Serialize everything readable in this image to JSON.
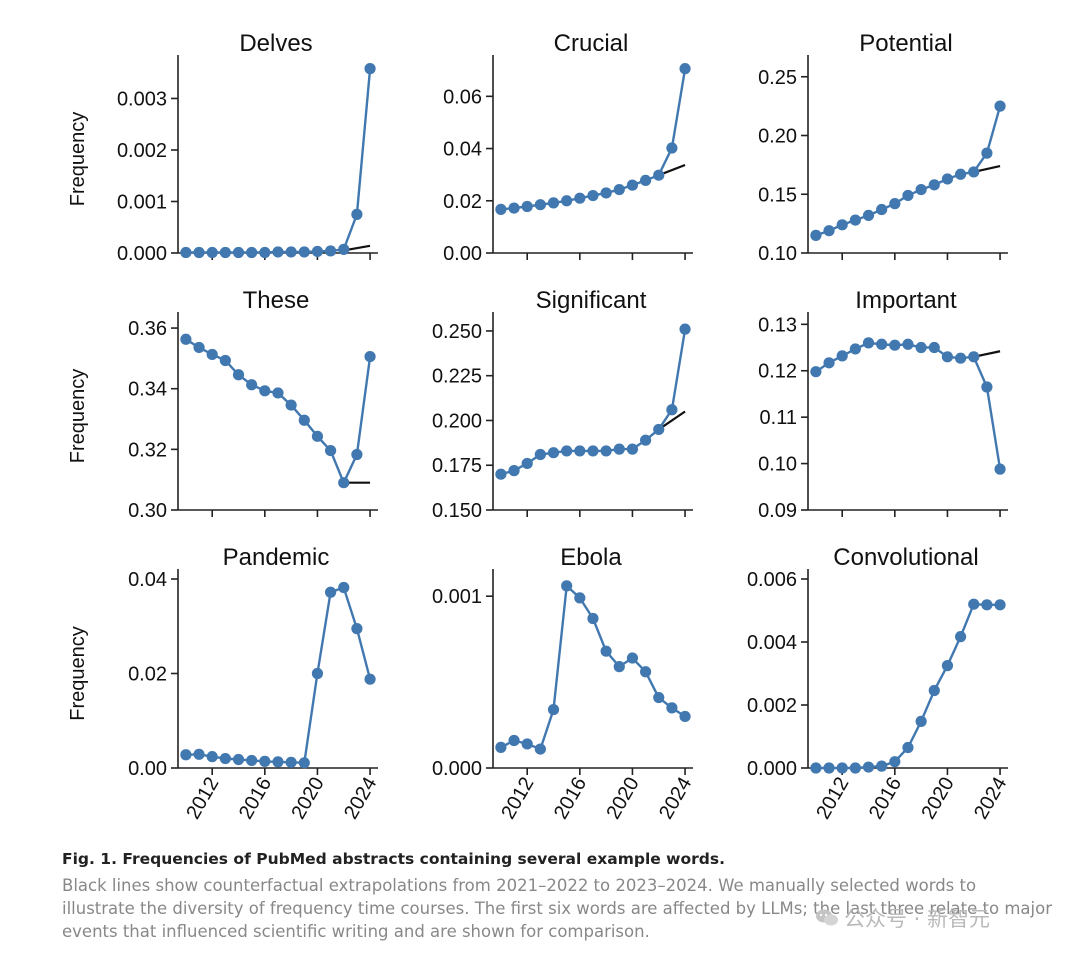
{
  "colors": {
    "series": "#4278b0",
    "extrapolation": "#111111",
    "axis": "#222222"
  },
  "ylabel": "Frequency",
  "x_ticks": [
    "2012",
    "2016",
    "2020",
    "2024"
  ],
  "chart_data": [
    {
      "type": "line",
      "title": "Delves",
      "ylim": [
        0,
        0.00365
      ],
      "yticks": [
        0,
        0.001,
        0.002,
        0.003
      ],
      "ytick_labels": [
        "0.000",
        "0.001",
        "0.002",
        "0.003"
      ],
      "x": [
        2010,
        2011,
        2012,
        2013,
        2014,
        2015,
        2016,
        2017,
        2018,
        2019,
        2020,
        2021,
        2022,
        2023,
        2024
      ],
      "values": [
        1e-05,
        1e-05,
        1e-05,
        1e-05,
        1e-05,
        1e-05,
        1e-05,
        2e-05,
        2e-05,
        2e-05,
        3e-05,
        4e-05,
        7e-05,
        0.00075,
        0.00358
      ],
      "extrapolation": {
        "x": [
          2022,
          2024
        ],
        "y": [
          5e-05,
          0.00014
        ]
      }
    },
    {
      "type": "line",
      "title": "Crucial",
      "ylim": [
        0,
        0.072
      ],
      "yticks": [
        0,
        0.02,
        0.04,
        0.06
      ],
      "ytick_labels": [
        "0.00",
        "0.02",
        "0.04",
        "0.06"
      ],
      "x": [
        2010,
        2011,
        2012,
        2013,
        2014,
        2015,
        2016,
        2017,
        2018,
        2019,
        2020,
        2021,
        2022,
        2023,
        2024
      ],
      "values": [
        0.0167,
        0.0172,
        0.0178,
        0.0185,
        0.0192,
        0.02,
        0.021,
        0.022,
        0.023,
        0.0243,
        0.026,
        0.0278,
        0.0298,
        0.0402,
        0.0706
      ],
      "extrapolation": {
        "x": [
          2022,
          2024
        ],
        "y": [
          0.0298,
          0.0337
        ]
      }
    },
    {
      "type": "line",
      "title": "Potential",
      "ylim": [
        0.1,
        0.26
      ],
      "yticks": [
        0.1,
        0.15,
        0.2,
        0.25
      ],
      "ytick_labels": [
        "0.10",
        "0.15",
        "0.20",
        "0.25"
      ],
      "x": [
        2010,
        2011,
        2012,
        2013,
        2014,
        2015,
        2016,
        2017,
        2018,
        2019,
        2020,
        2021,
        2022,
        2023,
        2024
      ],
      "values": [
        0.115,
        0.119,
        0.124,
        0.128,
        0.132,
        0.137,
        0.142,
        0.149,
        0.154,
        0.158,
        0.163,
        0.167,
        0.169,
        0.185,
        0.225
      ],
      "extrapolation": {
        "x": [
          2022,
          2024
        ],
        "y": [
          0.169,
          0.174
        ]
      }
    },
    {
      "type": "line",
      "title": "These",
      "ylim": [
        0.3,
        0.362
      ],
      "yticks": [
        0.3,
        0.32,
        0.34,
        0.36
      ],
      "ytick_labels": [
        "0.30",
        "0.32",
        "0.34",
        "0.36"
      ],
      "x": [
        2010,
        2011,
        2012,
        2013,
        2014,
        2015,
        2016,
        2017,
        2018,
        2019,
        2020,
        2021,
        2022,
        2023,
        2024
      ],
      "values": [
        0.3563,
        0.3536,
        0.3513,
        0.3493,
        0.3446,
        0.3413,
        0.3393,
        0.3386,
        0.3346,
        0.3296,
        0.3243,
        0.3196,
        0.309,
        0.3183,
        0.3506
      ],
      "extrapolation": {
        "x": [
          2022,
          2024
        ],
        "y": [
          0.309,
          0.309
        ]
      }
    },
    {
      "type": "line",
      "title": "Significant",
      "ylim": [
        0.15,
        0.255
      ],
      "yticks": [
        0.15,
        0.175,
        0.2,
        0.225,
        0.25
      ],
      "ytick_labels": [
        "0.150",
        "0.175",
        "0.200",
        "0.225",
        "0.250"
      ],
      "x": [
        2010,
        2011,
        2012,
        2013,
        2014,
        2015,
        2016,
        2017,
        2018,
        2019,
        2020,
        2021,
        2022,
        2023,
        2024
      ],
      "values": [
        0.17,
        0.172,
        0.176,
        0.181,
        0.182,
        0.183,
        0.183,
        0.183,
        0.183,
        0.184,
        0.184,
        0.189,
        0.195,
        0.206,
        0.251
      ],
      "extrapolation": {
        "x": [
          2022,
          2024
        ],
        "y": [
          0.195,
          0.205
        ]
      }
    },
    {
      "type": "line",
      "title": "Important",
      "ylim": [
        0.09,
        0.1305
      ],
      "yticks": [
        0.09,
        0.1,
        0.11,
        0.12,
        0.13
      ],
      "ytick_labels": [
        "0.09",
        "0.10",
        "0.11",
        "0.12",
        "0.13"
      ],
      "x": [
        2010,
        2011,
        2012,
        2013,
        2014,
        2015,
        2016,
        2017,
        2018,
        2019,
        2020,
        2021,
        2022,
        2023,
        2024
      ],
      "values": [
        0.1198,
        0.1217,
        0.1232,
        0.1247,
        0.126,
        0.1257,
        0.1255,
        0.1257,
        0.125,
        0.125,
        0.123,
        0.1227,
        0.123,
        0.1165,
        0.0988
      ],
      "extrapolation": {
        "x": [
          2022,
          2024
        ],
        "y": [
          0.123,
          0.1242
        ]
      }
    },
    {
      "type": "line",
      "title": "Pandemic",
      "ylim": [
        0,
        0.04
      ],
      "yticks": [
        0,
        0.02,
        0.04
      ],
      "ytick_labels": [
        "0.00",
        "0.02",
        "0.04"
      ],
      "x": [
        2010,
        2011,
        2012,
        2013,
        2014,
        2015,
        2016,
        2017,
        2018,
        2019,
        2020,
        2021,
        2022,
        2023,
        2024
      ],
      "values": [
        0.0028,
        0.0029,
        0.0024,
        0.002,
        0.0018,
        0.0016,
        0.0014,
        0.0013,
        0.0012,
        0.0011,
        0.02,
        0.0372,
        0.0382,
        0.0295,
        0.0188
      ]
    },
    {
      "type": "line",
      "title": "Ebola",
      "ylim": [
        0,
        0.0011
      ],
      "yticks": [
        0,
        0.001
      ],
      "ytick_labels": [
        "0.000",
        "0.001"
      ],
      "x": [
        2010,
        2011,
        2012,
        2013,
        2014,
        2015,
        2016,
        2017,
        2018,
        2019,
        2020,
        2021,
        2022,
        2023,
        2024
      ],
      "values": [
        0.00012,
        0.00016,
        0.00014,
        0.00011,
        0.00034,
        0.00106,
        0.00099,
        0.00087,
        0.00068,
        0.00059,
        0.00064,
        0.00056,
        0.00041,
        0.00035,
        0.0003
      ]
    },
    {
      "type": "line",
      "title": "Convolutional",
      "ylim": [
        0,
        0.006
      ],
      "yticks": [
        0,
        0.002,
        0.004,
        0.006
      ],
      "ytick_labels": [
        "0.000",
        "0.002",
        "0.004",
        "0.006"
      ],
      "x": [
        2010,
        2011,
        2012,
        2013,
        2014,
        2015,
        2016,
        2017,
        2018,
        2019,
        2020,
        2021,
        2022,
        2023,
        2024
      ],
      "values": [
        0.0,
        0.0,
        0.0,
        0.0,
        3e-05,
        6e-05,
        0.0002,
        0.00065,
        0.00148,
        0.00246,
        0.00325,
        0.00417,
        0.0052,
        0.00518,
        0.00518
      ]
    }
  ],
  "caption": {
    "title": "Fig. 1. Frequencies of PubMed abstracts containing several example words.",
    "body": "Black lines show counterfactual extrapolations from 2021–2022 to 2023–2024. We manually selected words to illustrate the diversity of frequency time courses. The first six words are affected by LLMs; the last three relate to major events that influenced scientific writing and are shown for comparison."
  },
  "watermark": {
    "text": "公众号 · 新智元"
  }
}
